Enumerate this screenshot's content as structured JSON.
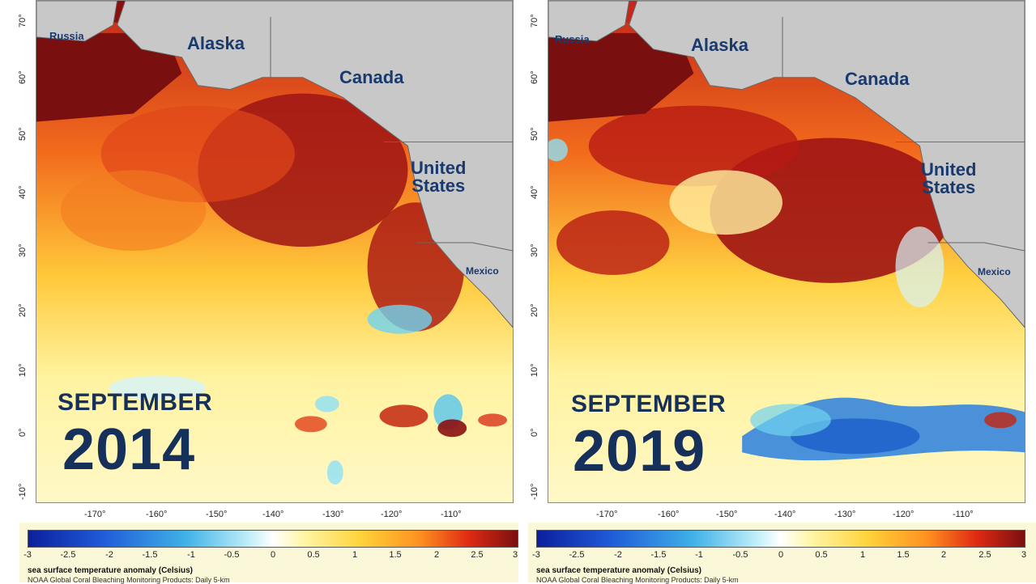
{
  "panels": [
    {
      "id": "left",
      "month": "SEPTEMBER",
      "year": "2014",
      "regions": {
        "alaska": "Alaska",
        "canada": "Canada",
        "us_line1": "United",
        "us_line2": "States",
        "mexico": "Mexico",
        "russia": "Russia"
      }
    },
    {
      "id": "right",
      "month": "SEPTEMBER",
      "year": "2019",
      "regions": {
        "alaska": "Alaska",
        "canada": "Canada",
        "us_line1": "United",
        "us_line2": "States",
        "mexico": "Mexico",
        "russia": "Russia"
      }
    }
  ],
  "latitude_ticks": [
    "70°",
    "60°",
    "50°",
    "40°",
    "30°",
    "20°",
    "10°",
    "0°",
    "-10°"
  ],
  "longitude_ticks": [
    "-170°",
    "-160°",
    "-150°",
    "-140°",
    "-130°",
    "-120°",
    "-110°"
  ],
  "legend": {
    "ticks": [
      "-3",
      "-2.5",
      "-2",
      "-1.5",
      "-1",
      "-0.5",
      "0",
      "0.5",
      "1",
      "1.5",
      "2",
      "2.5",
      "3"
    ],
    "title": "sea surface temperature anomaly (Celsius)",
    "source": "NOAA Global Coral Bleaching Monitoring Products: Daily 5-km",
    "colors": {
      "min": "#0c1f9c",
      "zero": "#ffffff",
      "max": "#7a0f0f"
    }
  }
}
